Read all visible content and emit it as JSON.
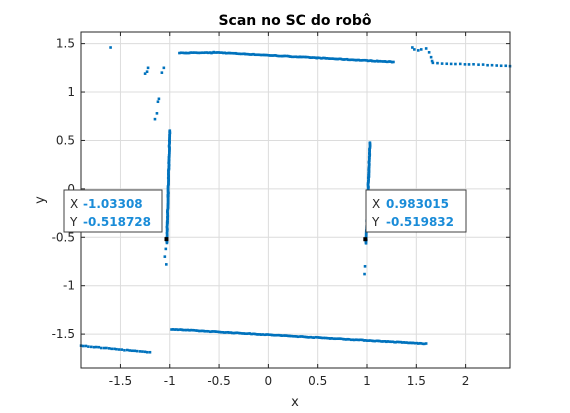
{
  "chart_data": {
    "type": "scatter",
    "title": "Scan no SC do robô",
    "xlabel": "x",
    "ylabel": "y",
    "xlim": [
      -1.9,
      2.45
    ],
    "ylim": [
      -1.85,
      1.62
    ],
    "xticks": [
      -1.5,
      -1,
      -0.5,
      0,
      0.5,
      1,
      1.5,
      2
    ],
    "xtick_labels": [
      "-1.5",
      "-1",
      "-0.5",
      "0",
      "0.5",
      "1",
      "1.5",
      "2"
    ],
    "yticks": [
      -1.5,
      -1,
      -0.5,
      0,
      0.5,
      1,
      1.5
    ],
    "ytick_labels": [
      "-1.5",
      "-1",
      "-0.5",
      "0",
      "0.5",
      "1",
      "1.5"
    ],
    "grid": true,
    "marker_color": "#0072bd",
    "series": [
      {
        "segments": [
          {
            "from": [
              -0.55,
              1.41
            ],
            "to": [
              1.27,
              1.31
            ],
            "n": 120
          },
          {
            "from": [
              -0.9,
              1.405
            ],
            "to": [
              -0.56,
              1.405
            ],
            "n": 22
          },
          {
            "from": [
              -1.03,
              -0.56
            ],
            "to": [
              -1.0,
              0.6
            ],
            "n": 110
          },
          {
            "from": [
              0.99,
              -0.56
            ],
            "to": [
              1.03,
              0.48
            ],
            "n": 100
          },
          {
            "from": [
              -0.98,
              -1.45
            ],
            "to": [
              1.6,
              -1.6
            ],
            "n": 160
          },
          {
            "from": [
              -1.9,
              -1.62
            ],
            "to": [
              -1.2,
              -1.69
            ],
            "n": 28
          },
          {
            "from": [
              1.67,
              1.3
            ],
            "to": [
              2.45,
              1.27
            ],
            "n": 18
          }
        ],
        "points": [
          [
            -1.6,
            1.46
          ],
          [
            -1.25,
            1.19
          ],
          [
            -1.23,
            1.21
          ],
          [
            -1.22,
            1.25
          ],
          [
            -1.08,
            1.2
          ],
          [
            -1.06,
            1.25
          ],
          [
            -1.15,
            0.72
          ],
          [
            -1.13,
            0.78
          ],
          [
            -1.12,
            0.9
          ],
          [
            -1.11,
            0.93
          ],
          [
            -1.04,
            -0.62
          ],
          [
            -1.05,
            -0.7
          ],
          [
            -1.035,
            -0.78
          ],
          [
            0.98,
            -0.8
          ],
          [
            0.975,
            -0.88
          ],
          [
            1.46,
            1.46
          ],
          [
            1.48,
            1.44
          ],
          [
            1.52,
            1.43
          ],
          [
            1.55,
            1.44
          ],
          [
            1.6,
            1.45
          ],
          [
            1.63,
            1.41
          ],
          [
            1.65,
            1.36
          ],
          [
            1.66,
            1.32
          ]
        ]
      }
    ],
    "datatips": [
      {
        "x_key": "X",
        "x_value": "-1.03308",
        "y_key": "Y",
        "y_value": "-0.518728"
      },
      {
        "x_key": "X",
        "x_value": "0.983015",
        "y_key": "Y",
        "y_value": "-0.519832"
      }
    ]
  }
}
